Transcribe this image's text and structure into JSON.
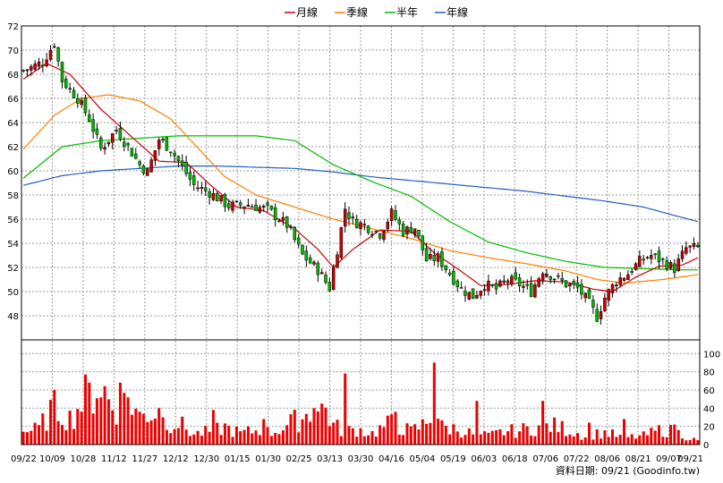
{
  "chart_data": {
    "type": "candlestick",
    "legend": [
      {
        "label": "月線",
        "color": "#cc0000"
      },
      {
        "label": "季線",
        "color": "#ff7f00"
      },
      {
        "label": "半年",
        "color": "#00bb00"
      },
      {
        "label": "年線",
        "color": "#1f5fbf"
      }
    ],
    "footer": "資料日期: 09/21 (Goodinfo.tw)",
    "price_axis": {
      "min": 46,
      "max": 72,
      "ticks": [
        "48",
        "50",
        "52",
        "54",
        "56",
        "58",
        "60",
        "62",
        "64",
        "66",
        "68",
        "70",
        "72"
      ]
    },
    "volume_axis": {
      "min": 0,
      "max": 115,
      "ticks": [
        "0",
        "20",
        "40",
        "60",
        "80",
        "100"
      ]
    },
    "x_labels": [
      "09/22",
      "10/09",
      "10/28",
      "11/12",
      "11/27",
      "12/12",
      "12/30",
      "01/15",
      "01/30",
      "02/25",
      "03/13",
      "03/30",
      "04/16",
      "05/04",
      "05/19",
      "06/03",
      "06/18",
      "07/06",
      "07/22",
      "08/06",
      "08/21",
      "09/07",
      "09/21"
    ],
    "colors": {
      "up": "#cc0000",
      "down": "#00bb00",
      "volume": "#ee0000",
      "grid": "#999999"
    },
    "close_keypoints": [
      [
        0,
        68.3
      ],
      [
        5,
        69.0
      ],
      [
        8,
        70.6
      ],
      [
        10,
        67.5
      ],
      [
        14,
        66.0
      ],
      [
        17,
        64.3
      ],
      [
        20,
        61.8
      ],
      [
        24,
        63.4
      ],
      [
        27,
        62.0
      ],
      [
        30,
        60.5
      ],
      [
        32,
        59.9
      ],
      [
        35,
        62.6
      ],
      [
        38,
        61.8
      ],
      [
        40,
        60.8
      ],
      [
        44,
        58.8
      ],
      [
        48,
        58.2
      ],
      [
        53,
        57.1
      ],
      [
        58,
        57.2
      ],
      [
        63,
        56.8
      ],
      [
        68,
        55.5
      ],
      [
        72,
        53.0
      ],
      [
        76,
        51.8
      ],
      [
        79,
        50.3
      ],
      [
        81,
        53.5
      ],
      [
        83,
        56.9
      ],
      [
        85,
        55.8
      ],
      [
        88,
        55.5
      ],
      [
        92,
        54.8
      ],
      [
        95,
        56.5
      ],
      [
        98,
        55.0
      ],
      [
        101,
        55.3
      ],
      [
        104,
        52.6
      ],
      [
        107,
        52.8
      ],
      [
        110,
        51.5
      ],
      [
        113,
        50.2
      ],
      [
        116,
        49.6
      ],
      [
        119,
        50.6
      ],
      [
        122,
        50.2
      ],
      [
        125,
        51.0
      ],
      [
        128,
        50.6
      ],
      [
        131,
        50.0
      ],
      [
        134,
        51.8
      ],
      [
        137,
        51.2
      ],
      [
        140,
        50.6
      ],
      [
        143,
        50.3
      ],
      [
        146,
        49.0
      ],
      [
        148,
        47.9
      ],
      [
        150,
        49.5
      ],
      [
        153,
        50.9
      ],
      [
        156,
        51.5
      ],
      [
        159,
        52.5
      ],
      [
        162,
        53.0
      ],
      [
        165,
        52.5
      ],
      [
        168,
        51.9
      ],
      [
        171,
        53.6
      ],
      [
        174,
        53.6
      ]
    ],
    "ma_monthly": [
      [
        0,
        67.6
      ],
      [
        6,
        68.9
      ],
      [
        12,
        68.0
      ],
      [
        20,
        65.1
      ],
      [
        28,
        62.8
      ],
      [
        35,
        60.8
      ],
      [
        42,
        60.7
      ],
      [
        48,
        58.9
      ],
      [
        55,
        57.0
      ],
      [
        62,
        56.7
      ],
      [
        70,
        55.2
      ],
      [
        76,
        53.5
      ],
      [
        80,
        52.0
      ],
      [
        85,
        53.5
      ],
      [
        92,
        55.1
      ],
      [
        100,
        55.0
      ],
      [
        106,
        53.2
      ],
      [
        112,
        51.9
      ],
      [
        118,
        50.5
      ],
      [
        125,
        50.6
      ],
      [
        132,
        50.9
      ],
      [
        140,
        50.8
      ],
      [
        147,
        50.2
      ],
      [
        152,
        50.0
      ],
      [
        158,
        51.2
      ],
      [
        164,
        52.1
      ],
      [
        170,
        52.2
      ],
      [
        174,
        52.8
      ]
    ],
    "ma_quarterly": [
      [
        0,
        61.8
      ],
      [
        8,
        64.6
      ],
      [
        15,
        66.0
      ],
      [
        22,
        66.3
      ],
      [
        30,
        65.8
      ],
      [
        38,
        64.3
      ],
      [
        45,
        61.9
      ],
      [
        52,
        59.5
      ],
      [
        60,
        58.0
      ],
      [
        70,
        57.0
      ],
      [
        80,
        56.0
      ],
      [
        90,
        55.2
      ],
      [
        100,
        54.4
      ],
      [
        110,
        53.4
      ],
      [
        120,
        52.8
      ],
      [
        130,
        52.3
      ],
      [
        140,
        51.7
      ],
      [
        148,
        51.0
      ],
      [
        155,
        50.7
      ],
      [
        165,
        51.0
      ],
      [
        174,
        51.4
      ]
    ],
    "ma_halfyear": [
      [
        0,
        59.4
      ],
      [
        10,
        62.0
      ],
      [
        20,
        62.5
      ],
      [
        30,
        62.7
      ],
      [
        40,
        62.9
      ],
      [
        50,
        62.9
      ],
      [
        60,
        62.9
      ],
      [
        70,
        62.5
      ],
      [
        80,
        60.5
      ],
      [
        90,
        59.1
      ],
      [
        100,
        57.9
      ],
      [
        110,
        55.8
      ],
      [
        120,
        54.1
      ],
      [
        130,
        53.2
      ],
      [
        140,
        52.5
      ],
      [
        150,
        52.0
      ],
      [
        160,
        51.9
      ],
      [
        170,
        51.8
      ],
      [
        174,
        51.8
      ]
    ],
    "ma_yearly": [
      [
        0,
        58.8
      ],
      [
        10,
        59.6
      ],
      [
        20,
        60.0
      ],
      [
        30,
        60.2
      ],
      [
        40,
        60.4
      ],
      [
        50,
        60.4
      ],
      [
        60,
        60.3
      ],
      [
        70,
        60.2
      ],
      [
        80,
        59.9
      ],
      [
        90,
        59.5
      ],
      [
        100,
        59.2
      ],
      [
        110,
        58.9
      ],
      [
        120,
        58.6
      ],
      [
        130,
        58.3
      ],
      [
        140,
        57.9
      ],
      [
        150,
        57.5
      ],
      [
        160,
        57.0
      ],
      [
        168,
        56.3
      ],
      [
        174,
        55.8
      ]
    ],
    "volume_keypoints": [
      [
        0,
        15
      ],
      [
        4,
        18
      ],
      [
        8,
        45
      ],
      [
        12,
        30
      ],
      [
        16,
        55
      ],
      [
        20,
        70
      ],
      [
        24,
        30
      ],
      [
        27,
        55
      ],
      [
        30,
        32
      ],
      [
        33,
        38
      ],
      [
        36,
        28
      ],
      [
        40,
        25
      ],
      [
        44,
        12
      ],
      [
        48,
        15
      ],
      [
        52,
        20
      ],
      [
        56,
        13
      ],
      [
        60,
        16
      ],
      [
        64,
        14
      ],
      [
        68,
        22
      ],
      [
        72,
        32
      ],
      [
        75,
        38
      ],
      [
        78,
        42
      ],
      [
        80,
        22
      ],
      [
        83,
        15
      ],
      [
        86,
        18
      ],
      [
        90,
        13
      ],
      [
        95,
        25
      ],
      [
        100,
        15
      ],
      [
        104,
        25
      ],
      [
        106,
        45
      ],
      [
        108,
        20
      ],
      [
        112,
        18
      ],
      [
        116,
        12
      ],
      [
        120,
        10
      ],
      [
        124,
        15
      ],
      [
        128,
        16
      ],
      [
        132,
        20
      ],
      [
        136,
        22
      ],
      [
        140,
        18
      ],
      [
        145,
        10
      ],
      [
        150,
        14
      ],
      [
        155,
        8
      ],
      [
        160,
        10
      ],
      [
        165,
        18
      ],
      [
        170,
        12
      ],
      [
        174,
        4
      ]
    ],
    "volume_spikes": [
      [
        8,
        60
      ],
      [
        17,
        68
      ],
      [
        25,
        68
      ],
      [
        35,
        40
      ],
      [
        49,
        38
      ],
      [
        62,
        28
      ],
      [
        75,
        40
      ],
      [
        83,
        78
      ],
      [
        96,
        36
      ],
      [
        106,
        90
      ],
      [
        117,
        48
      ],
      [
        134,
        48
      ],
      [
        146,
        24
      ],
      [
        155,
        28
      ],
      [
        168,
        22
      ]
    ]
  }
}
